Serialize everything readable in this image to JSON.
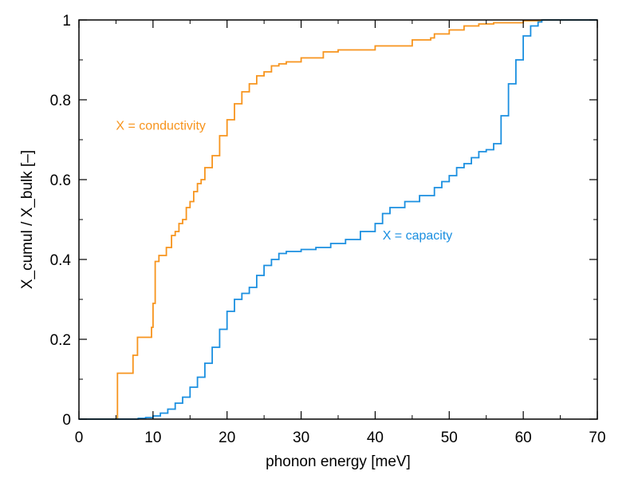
{
  "chart_data": {
    "type": "line",
    "title": "",
    "xlabel": "phonon energy [meV]",
    "ylabel": "X_cumul / X_bulk [–]",
    "xlim": [
      0,
      70
    ],
    "ylim": [
      0,
      1
    ],
    "xticks": [
      0,
      10,
      20,
      30,
      40,
      50,
      60,
      70
    ],
    "xtick_labels": [
      "0",
      "10",
      "20",
      "30",
      "40",
      "50",
      "60",
      "70"
    ],
    "yticks": [
      0,
      0.2,
      0.4,
      0.6,
      0.8,
      1
    ],
    "ytick_labels": [
      "0",
      "0.2",
      "0.4",
      "0.6",
      "0.8",
      "1"
    ],
    "grid": false,
    "legend": "none",
    "annotations": [
      {
        "text": "X = conductivity",
        "color": "#f7941d",
        "x": 5,
        "y": 0.725
      },
      {
        "text": "X = capacity",
        "color": "#1a8fe0",
        "x": 41,
        "y": 0.45
      }
    ],
    "series": [
      {
        "color": "#f7941d",
        "x": [
          0,
          5.2,
          5.2,
          6.0,
          7.0,
          7.3,
          7.8,
          7.9,
          8.2,
          9.5,
          9.8,
          10.0,
          10.3,
          10.5,
          10.8,
          11.5,
          11.8,
          12.0,
          12.5,
          13.0,
          13.5,
          14.0,
          14.5,
          15.0,
          15.5,
          16.0,
          16.5,
          17.0,
          18.0,
          19.0,
          20.0,
          21.0,
          22.0,
          23.0,
          24.0,
          25.0,
          26.0,
          27.0,
          28.0,
          30.0,
          33.0,
          35.0,
          40.0,
          45.0,
          47.5,
          48.0,
          50.0,
          52.0,
          54.0,
          56.0,
          60.0,
          62.5,
          70.0
        ],
        "y": [
          0,
          0,
          0.115,
          0.115,
          0.115,
          0.16,
          0.16,
          0.205,
          0.205,
          0.205,
          0.23,
          0.29,
          0.395,
          0.395,
          0.41,
          0.41,
          0.43,
          0.43,
          0.46,
          0.47,
          0.49,
          0.5,
          0.53,
          0.545,
          0.57,
          0.59,
          0.6,
          0.63,
          0.66,
          0.71,
          0.75,
          0.79,
          0.82,
          0.84,
          0.86,
          0.87,
          0.885,
          0.89,
          0.895,
          0.905,
          0.92,
          0.925,
          0.935,
          0.95,
          0.955,
          0.965,
          0.975,
          0.985,
          0.99,
          0.993,
          0.998,
          1.0,
          1.0
        ]
      },
      {
        "color": "#1a8fe0",
        "x": [
          0,
          8.0,
          9.0,
          10.0,
          11.0,
          12.0,
          13.0,
          14.0,
          15.0,
          16.0,
          17.0,
          18.0,
          19.0,
          20.0,
          21.0,
          22.0,
          23.0,
          24.0,
          25.0,
          26.0,
          27.0,
          28.0,
          30.0,
          32.0,
          34.0,
          36.0,
          38.0,
          40.0,
          41.0,
          42.0,
          44.0,
          46.0,
          48.0,
          49.0,
          50.0,
          51.0,
          52.0,
          53.0,
          54.0,
          55.0,
          56.0,
          57.0,
          58.0,
          59.0,
          60.0,
          61.0,
          62.0,
          62.5,
          70.0
        ],
        "y": [
          0,
          0.002,
          0.004,
          0.008,
          0.015,
          0.025,
          0.04,
          0.055,
          0.08,
          0.105,
          0.14,
          0.18,
          0.225,
          0.27,
          0.3,
          0.315,
          0.33,
          0.36,
          0.385,
          0.4,
          0.415,
          0.42,
          0.425,
          0.43,
          0.44,
          0.45,
          0.47,
          0.49,
          0.515,
          0.53,
          0.545,
          0.56,
          0.58,
          0.595,
          0.61,
          0.63,
          0.64,
          0.655,
          0.67,
          0.675,
          0.69,
          0.76,
          0.84,
          0.9,
          0.96,
          0.985,
          0.995,
          1.0,
          1.0
        ]
      }
    ]
  }
}
